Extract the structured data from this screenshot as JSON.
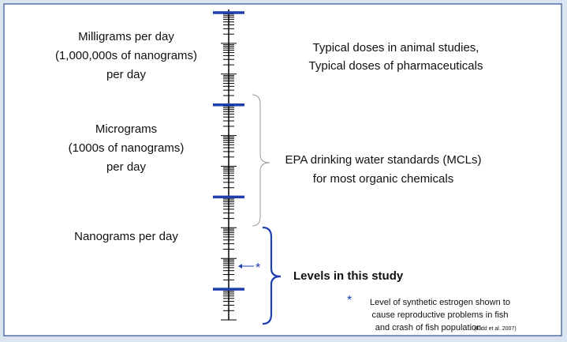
{
  "scale_labels": [
    {
      "lines": [
        "Milligrams per day",
        "(1,000,000s of nanograms)",
        "per day"
      ]
    },
    {
      "lines": [
        "Micrograms",
        "(1000s of nanograms)",
        "per day"
      ]
    },
    {
      "lines": [
        "Nanograms per day"
      ]
    }
  ],
  "annotations": [
    {
      "lines": [
        "Typical doses in animal studies,",
        "Typical doses of pharmaceuticals"
      ]
    },
    {
      "lines": [
        "EPA drinking water standards (MCLs)",
        "for most organic chemicals"
      ]
    },
    {
      "lines": [
        "Levels in this study"
      ]
    }
  ],
  "marker": "*",
  "footnote": {
    "marker": "*",
    "lines": [
      "Level of synthetic estrogen shown to",
      "cause reproductive problems in fish",
      "and crash of fish population"
    ],
    "citation": "(Kidd et al. 2007)"
  }
}
